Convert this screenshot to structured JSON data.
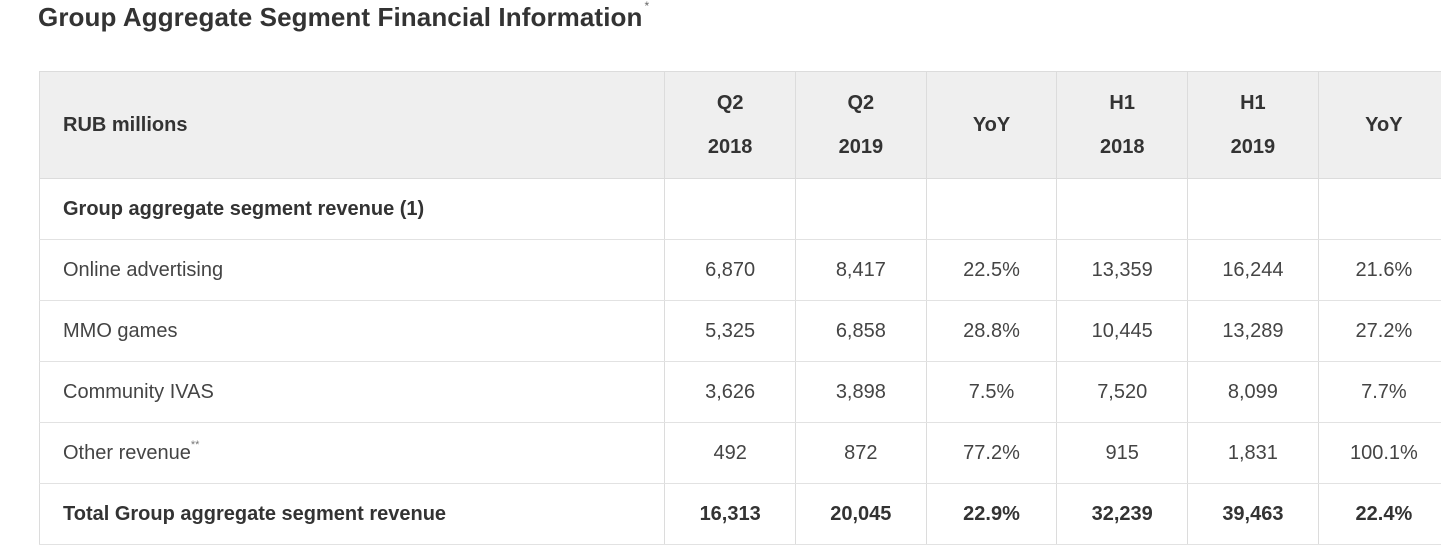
{
  "title": {
    "text": "Group Aggregate Segment Financial Information",
    "footnote_mark": "*"
  },
  "table": {
    "header": {
      "label": "RUB millions",
      "columns": [
        {
          "line1": "Q2",
          "line2": "2018"
        },
        {
          "line1": "Q2",
          "line2": "2019"
        },
        {
          "line1": "YoY",
          "line2": ""
        },
        {
          "line1": "H1",
          "line2": "2018"
        },
        {
          "line1": "H1",
          "line2": "2019"
        },
        {
          "line1": "YoY",
          "line2": ""
        }
      ]
    },
    "section": {
      "label": "Group aggregate segment revenue (1)"
    },
    "rows": [
      {
        "label": "Online advertising",
        "mark": "",
        "values": [
          "6,870",
          "8,417",
          "22.5%",
          "13,359",
          "16,244",
          "21.6%"
        ]
      },
      {
        "label": "MMO games",
        "mark": "",
        "values": [
          "5,325",
          "6,858",
          "28.8%",
          "10,445",
          "13,289",
          "27.2%"
        ]
      },
      {
        "label": "Community IVAS",
        "mark": "",
        "values": [
          "3,626",
          "3,898",
          "7.5%",
          "7,520",
          "8,099",
          "7.7%"
        ]
      },
      {
        "label": "Other revenue",
        "mark": "**",
        "values": [
          "492",
          "872",
          "77.2%",
          "915",
          "1,831",
          "100.1%"
        ]
      }
    ],
    "total": {
      "label": "Total Group aggregate segment revenue",
      "values": [
        "16,313",
        "20,045",
        "22.9%",
        "32,239",
        "39,463",
        "22.4%"
      ]
    }
  }
}
